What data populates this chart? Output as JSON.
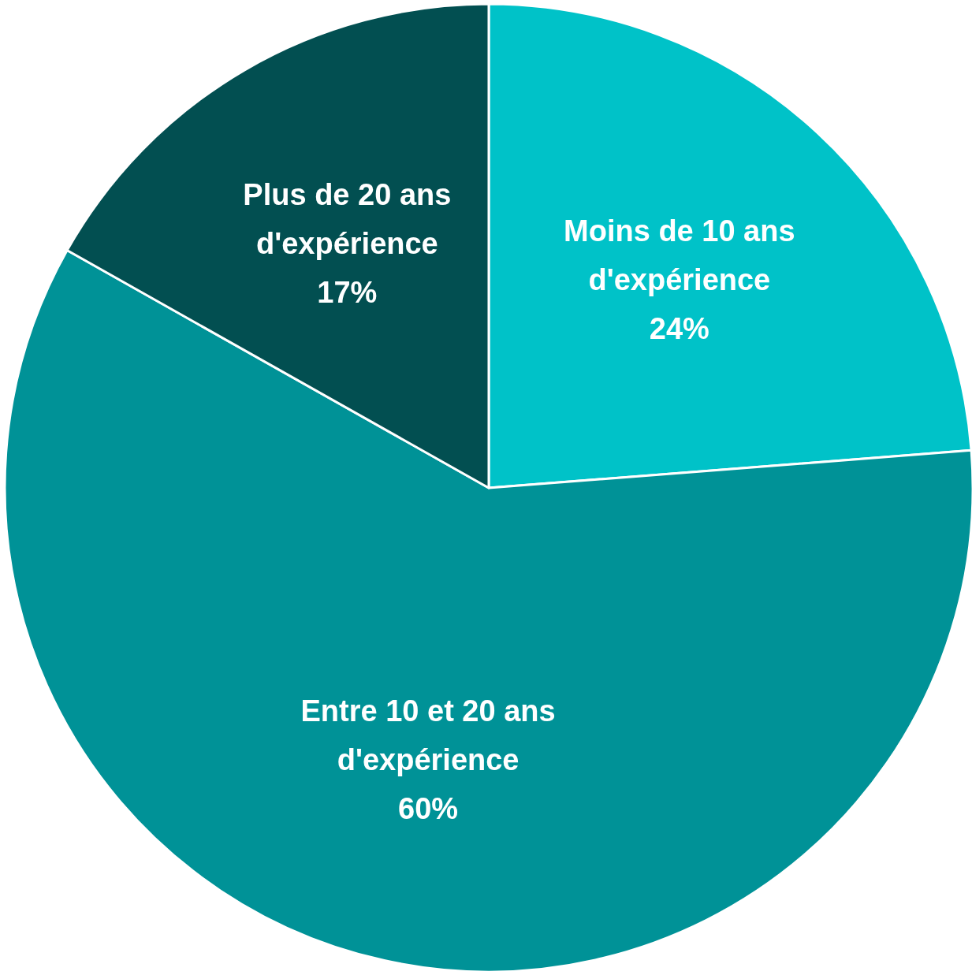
{
  "chart_data": {
    "type": "pie",
    "categories": [
      "Moins de 10 ans d'expérience",
      "Entre 10 et 20 ans d'expérience",
      "Plus de 20 ans d'expérience"
    ],
    "values": [
      24,
      60,
      17
    ],
    "value_labels": [
      "24%",
      "60%",
      "17%"
    ],
    "colors": [
      "#00c2c8",
      "#009297",
      "#024f51"
    ]
  }
}
